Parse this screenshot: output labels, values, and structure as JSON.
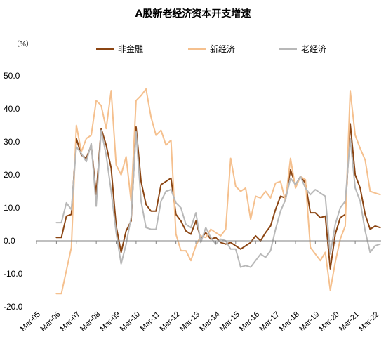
{
  "chart_data": {
    "type": "line",
    "title": "A股新老经济资本开支增速",
    "unit_label": "（%）",
    "ylim": [
      -20,
      50
    ],
    "y_ticks": [
      "50.0",
      "40.0",
      "30.0",
      "20.0",
      "10.0",
      "0.0",
      "-10.0",
      "-20.0"
    ],
    "y_tick_values": [
      50,
      40,
      30,
      20,
      10,
      0,
      -10,
      -20
    ],
    "negative_tick_color": "#e00000",
    "x_ticks": [
      "Mar-05",
      "Mar-06",
      "Mar-07",
      "Mar-08",
      "Mar-09",
      "Mar-10",
      "Mar-11",
      "Mar-12",
      "Mar-13",
      "Mar-14",
      "Mar-15",
      "Mar-16",
      "Mar-17",
      "Mar-18",
      "Mar-19",
      "Mar-20",
      "Mar-21",
      "Mar-22"
    ],
    "x_tick_values": [
      0,
      1,
      2,
      3,
      4,
      5,
      6,
      7,
      8,
      9,
      10,
      11,
      12,
      13,
      14,
      15,
      16,
      17
    ],
    "x_range": [
      0,
      17.3
    ],
    "legend_position": "top",
    "x": [
      1.0,
      1.25,
      1.5,
      1.75,
      2.0,
      2.25,
      2.5,
      2.75,
      3.0,
      3.25,
      3.5,
      3.75,
      4.0,
      4.25,
      4.5,
      4.75,
      5.0,
      5.25,
      5.5,
      5.75,
      6.0,
      6.25,
      6.5,
      6.75,
      7.0,
      7.25,
      7.5,
      7.75,
      8.0,
      8.25,
      8.5,
      8.75,
      9.0,
      9.25,
      9.5,
      9.75,
      10.0,
      10.25,
      10.5,
      10.75,
      11.0,
      11.25,
      11.5,
      11.75,
      12.0,
      12.25,
      12.5,
      12.75,
      13.0,
      13.25,
      13.5,
      13.75,
      14.0,
      14.25,
      14.5,
      14.75,
      15.0,
      15.25,
      15.5,
      15.75,
      16.0,
      16.25,
      16.5,
      16.75,
      17.0,
      17.25
    ],
    "series": [
      {
        "name": "非金融",
        "color": "#8b4513",
        "width": 2,
        "values": [
          1.0,
          1.0,
          7.5,
          8.0,
          31.0,
          26.0,
          25.0,
          29.0,
          14.0,
          34.0,
          29.0,
          22.0,
          4.5,
          -3.5,
          3.0,
          6.0,
          34.5,
          18.0,
          11.0,
          9.0,
          9.0,
          17.0,
          18.0,
          19.0,
          8.0,
          6.0,
          3.0,
          2.0,
          6.0,
          0.5,
          2.5,
          0.5,
          1.0,
          -0.5,
          -1.0,
          -0.5,
          -1.5,
          -2.5,
          -1.5,
          -0.5,
          1.5,
          0.0,
          2.5,
          4.5,
          9.5,
          13.5,
          13.0,
          21.5,
          17.0,
          19.5,
          17.5,
          8.5,
          8.5,
          7.0,
          7.5,
          -8.5,
          2.0,
          7.0,
          8.0,
          35.5,
          20.0,
          16.0,
          8.0,
          3.5,
          4.5,
          4.0
        ]
      },
      {
        "name": "新经济",
        "color": "#f5c08e",
        "width": 2,
        "values": [
          -16.0,
          -16.0,
          -9.0,
          -2.0,
          35.0,
          27.0,
          31.0,
          32.0,
          42.5,
          41.0,
          34.0,
          45.5,
          23.0,
          20.0,
          25.5,
          12.0,
          42.5,
          44.0,
          46.0,
          37.5,
          32.0,
          33.5,
          29.0,
          30.5,
          2.0,
          -3.0,
          -3.0,
          -6.0,
          -1.5,
          1.5,
          1.0,
          3.5,
          2.5,
          1.5,
          3.5,
          25.0,
          16.5,
          15.0,
          16.0,
          6.5,
          13.5,
          13.0,
          15.0,
          13.0,
          17.5,
          18.0,
          12.0,
          25.0,
          16.0,
          19.5,
          18.5,
          -2.0,
          -4.0,
          -6.0,
          -3.5,
          -15.0,
          -6.5,
          0.5,
          4.5,
          45.5,
          32.0,
          28.0,
          24.5,
          15.0,
          14.5,
          14.0
        ]
      },
      {
        "name": "老经济",
        "color": "#b8b8b8",
        "width": 2,
        "values": [
          5.5,
          5.5,
          11.5,
          9.5,
          28.5,
          26.5,
          24.0,
          29.5,
          10.5,
          33.5,
          26.0,
          15.0,
          2.5,
          -7.0,
          -1.0,
          7.0,
          33.0,
          12.0,
          4.0,
          3.5,
          3.5,
          12.0,
          15.0,
          15.5,
          11.5,
          10.0,
          5.0,
          4.0,
          8.5,
          -0.5,
          4.0,
          1.0,
          -1.0,
          0.5,
          0.0,
          -2.5,
          -2.5,
          -8.0,
          -7.5,
          -8.0,
          -6.0,
          -4.0,
          -5.0,
          -3.0,
          3.5,
          9.0,
          12.5,
          19.0,
          17.0,
          19.5,
          16.0,
          14.0,
          15.5,
          14.5,
          13.5,
          -4.0,
          5.0,
          10.0,
          12.0,
          31.0,
          16.0,
          12.0,
          3.0,
          -3.5,
          -1.5,
          -1.0
        ]
      }
    ]
  }
}
